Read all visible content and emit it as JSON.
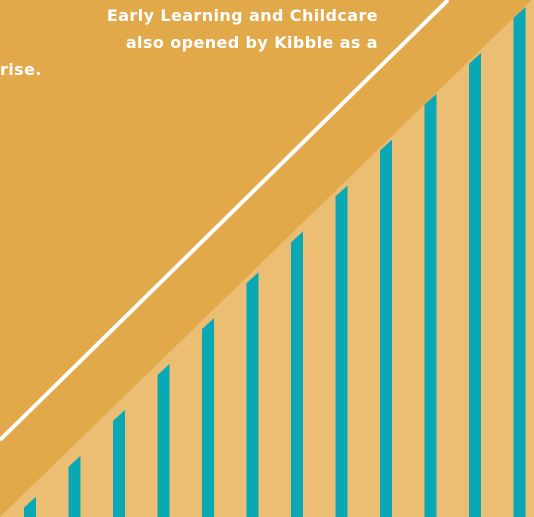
{
  "text": {
    "lines": [
      "Early Learning and Childcare",
      "also opened by Kibble as a",
      "rise."
    ]
  },
  "colors": {
    "background": "#e2a94a",
    "lower_wedge": "#ebbe74",
    "bars": "#0aa7b4",
    "diagonal_line": "#ffffff",
    "text": "#ffffff"
  },
  "bars": {
    "count": 12,
    "relative_heights": [
      0.04,
      0.12,
      0.21,
      0.3,
      0.39,
      0.48,
      0.56,
      0.65,
      0.74,
      0.83,
      0.91,
      1.0
    ]
  }
}
